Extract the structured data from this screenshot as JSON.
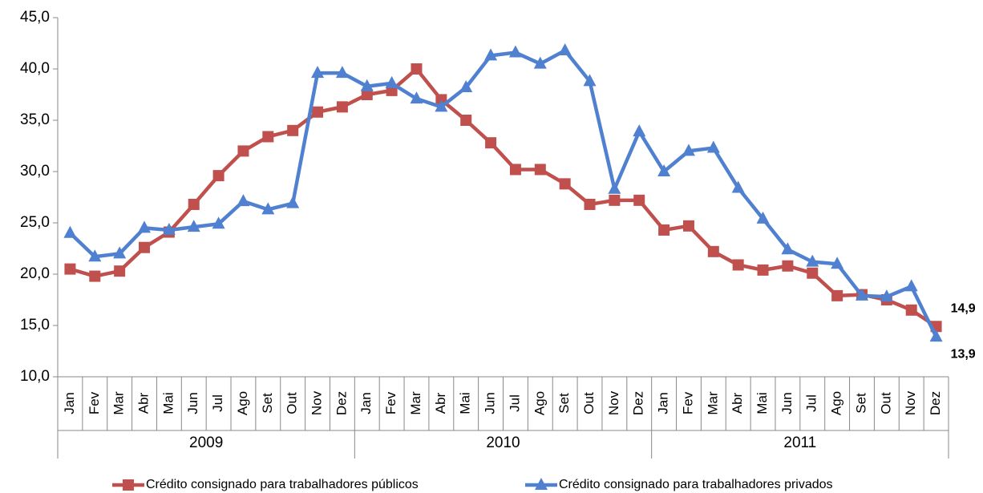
{
  "chart_data": {
    "type": "line",
    "categories": [
      "Jan",
      "Fev",
      "Mar",
      "Abr",
      "Mai",
      "Jun",
      "Jul",
      "Ago",
      "Set",
      "Out",
      "Nov",
      "Dez",
      "Jan",
      "Fev",
      "Mar",
      "Abr",
      "Mai",
      "Jun",
      "Jul",
      "Ago",
      "Set",
      "Out",
      "Nov",
      "Dez",
      "Jan",
      "Fev",
      "Mar",
      "Abr",
      "Mai",
      "Jun",
      "Jul",
      "Ago",
      "Set",
      "Out",
      "Nov",
      "Dez"
    ],
    "category_groups": [
      "2009",
      "2010",
      "2011"
    ],
    "series": [
      {
        "name": "Crédito consignado para trabalhadores públicos",
        "color": "#c0504d",
        "marker": "square",
        "values": [
          20.5,
          19.8,
          20.3,
          22.6,
          24.1,
          26.8,
          29.6,
          32.0,
          33.4,
          34.0,
          35.8,
          36.3,
          37.5,
          37.9,
          40.0,
          37.0,
          35.0,
          32.8,
          30.2,
          30.2,
          28.8,
          26.8,
          27.2,
          27.2,
          24.3,
          24.7,
          22.2,
          20.9,
          20.4,
          20.8,
          20.1,
          17.9,
          18.0,
          17.5,
          16.5,
          14.9
        ],
        "value_labels": [
          null,
          null,
          null,
          null,
          null,
          null,
          null,
          null,
          null,
          null,
          null,
          null,
          null,
          null,
          null,
          null,
          null,
          null,
          null,
          null,
          null,
          null,
          null,
          null,
          null,
          null,
          null,
          null,
          null,
          null,
          null,
          null,
          null,
          null,
          null,
          "14,9"
        ]
      },
      {
        "name": "Crédito consignado para trabalhadores privados",
        "color": "#4f81d0",
        "marker": "triangle",
        "values": [
          24.0,
          21.7,
          22.0,
          24.5,
          24.3,
          24.6,
          24.9,
          27.1,
          26.3,
          26.9,
          39.6,
          39.6,
          38.3,
          38.6,
          37.1,
          36.3,
          38.2,
          41.3,
          41.6,
          40.5,
          41.8,
          38.8,
          28.3,
          33.9,
          30.0,
          32.0,
          32.3,
          28.4,
          25.4,
          22.4,
          21.2,
          21.0,
          17.9,
          17.8,
          18.8,
          13.9
        ],
        "value_labels": [
          null,
          null,
          null,
          null,
          null,
          null,
          null,
          null,
          null,
          null,
          null,
          null,
          null,
          null,
          null,
          null,
          null,
          null,
          null,
          null,
          null,
          null,
          null,
          null,
          null,
          null,
          null,
          null,
          null,
          null,
          null,
          null,
          null,
          null,
          null,
          "13,9"
        ]
      }
    ],
    "ylim": [
      10,
      45
    ],
    "yticks": [
      {
        "value": 10,
        "label": "10,0"
      },
      {
        "value": 15,
        "label": "15,0"
      },
      {
        "value": 20,
        "label": "20,0"
      },
      {
        "value": 25,
        "label": "25,0"
      },
      {
        "value": 30,
        "label": "30,0"
      },
      {
        "value": 35,
        "label": "35,0"
      },
      {
        "value": 40,
        "label": "40,0"
      },
      {
        "value": 45,
        "label": "45,0"
      }
    ],
    "grid": false,
    "legend": "bottom"
  }
}
